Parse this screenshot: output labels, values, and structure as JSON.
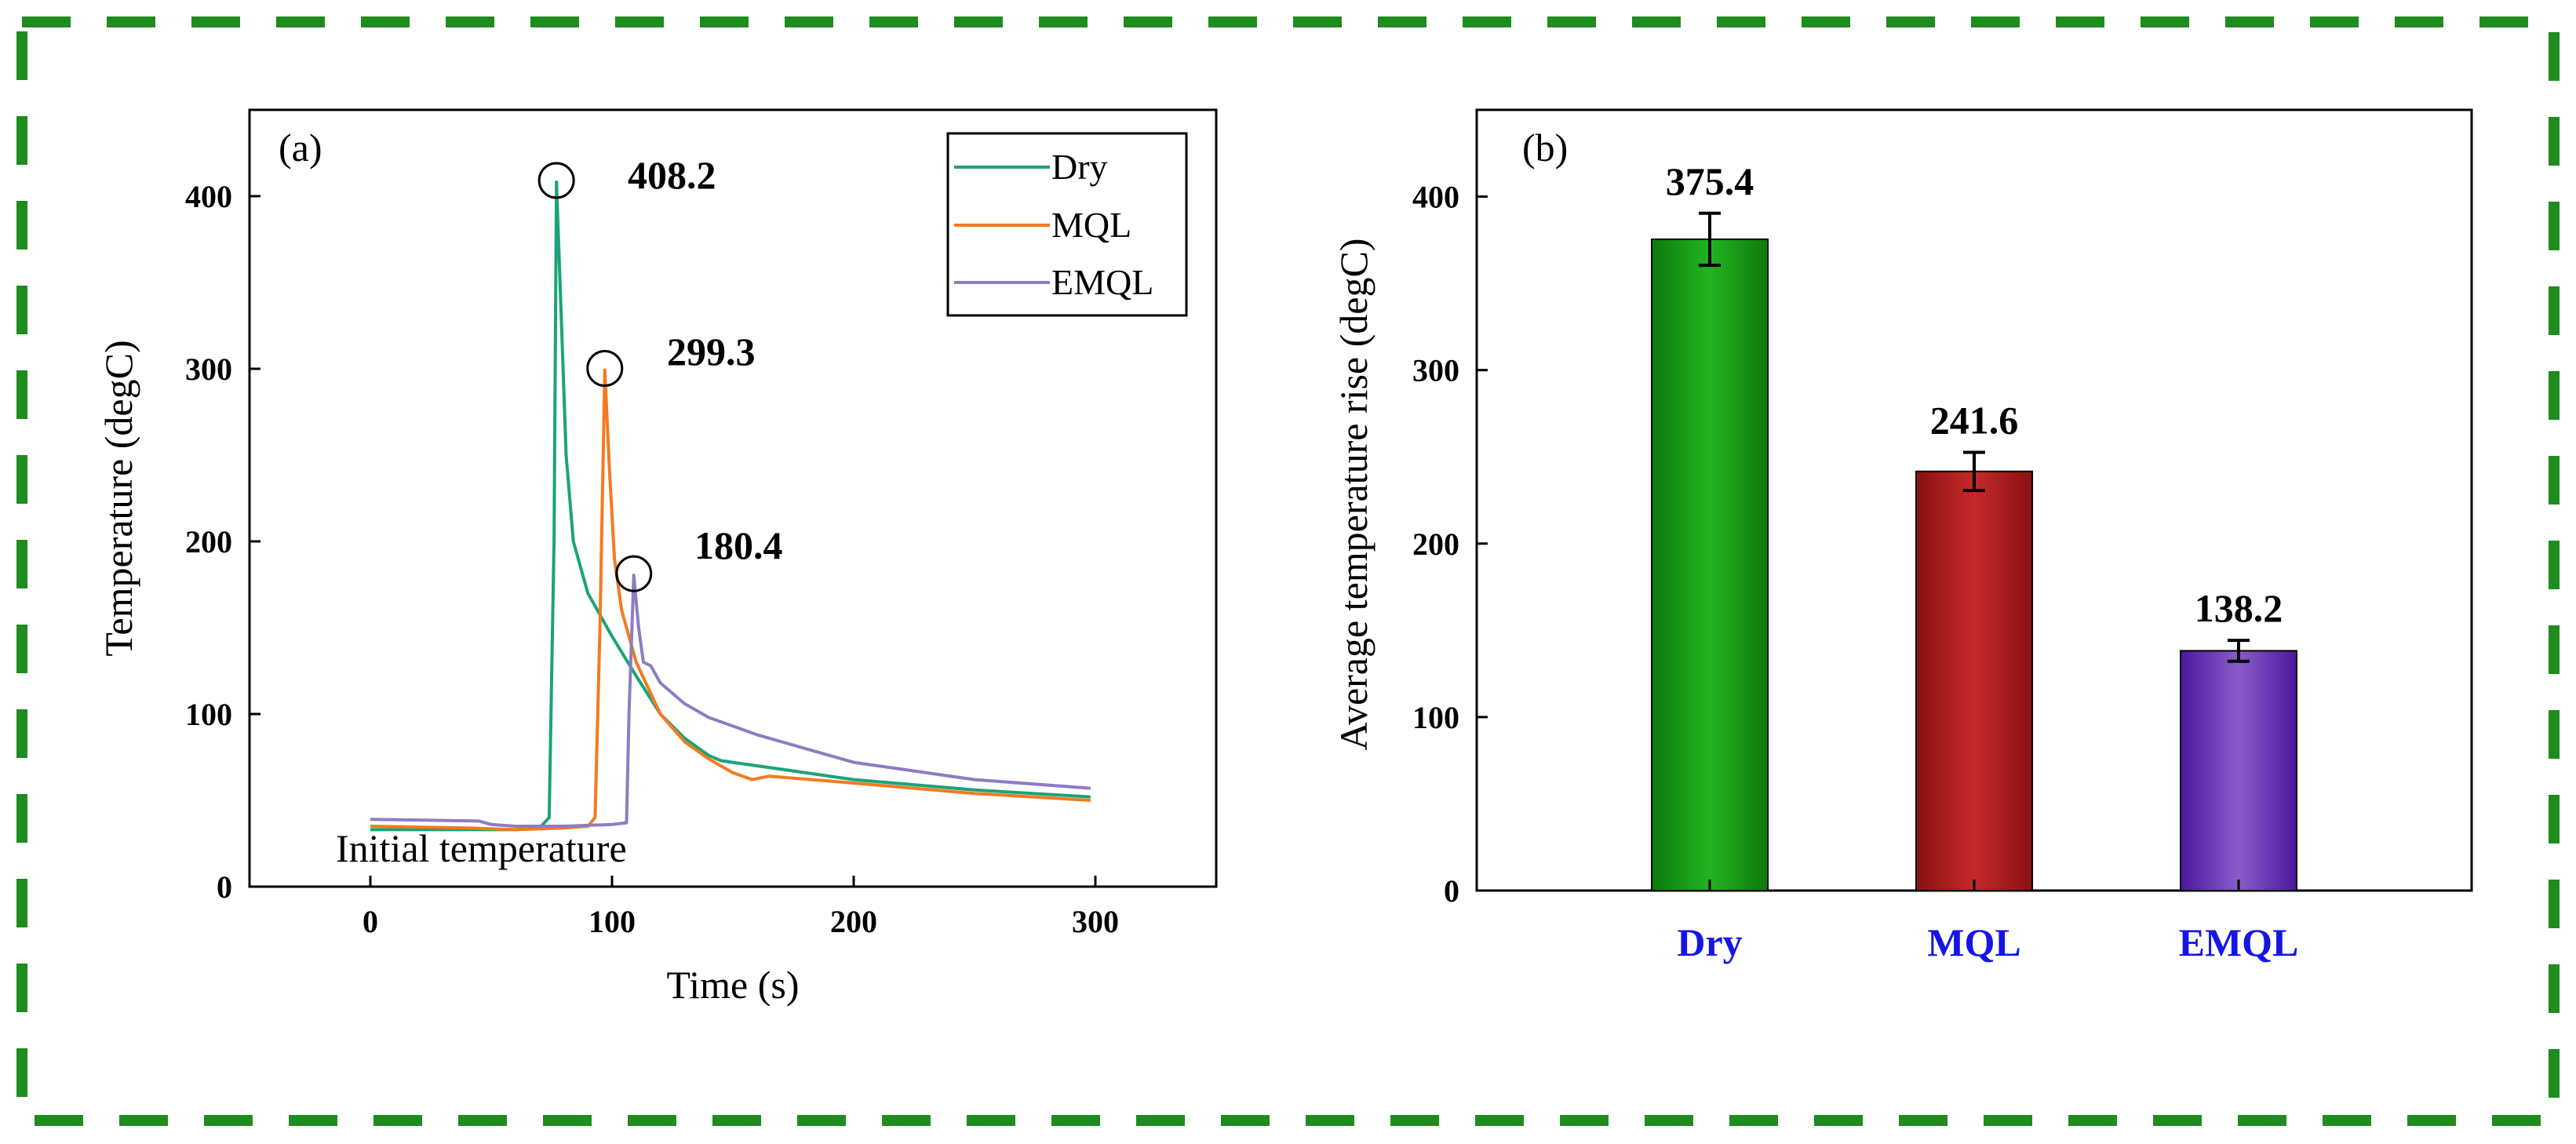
{
  "frame_color": "#1e8c1e",
  "chart_data": [
    {
      "type": "line",
      "panel_label": "(a)",
      "xlabel": "Time (s)",
      "ylabel": "Temperature  (degC)",
      "xlim": [
        -50,
        350
      ],
      "ylim": [
        0,
        450
      ],
      "xticks": [
        0,
        100,
        200,
        300
      ],
      "yticks": [
        0,
        100,
        200,
        300,
        400
      ],
      "grid": false,
      "legend_position": "top-right",
      "annotation": "Initial temperature",
      "series": [
        {
          "name": "Dry",
          "color": "#1aa37a",
          "peak_label": "408.2",
          "peak": [
            77,
            408.2
          ],
          "points": [
            [
              0,
              33
            ],
            [
              40,
              33
            ],
            [
              60,
              33
            ],
            [
              70,
              34
            ],
            [
              74,
              40
            ],
            [
              76,
              200
            ],
            [
              77,
              408.2
            ],
            [
              79,
              330
            ],
            [
              81,
              250
            ],
            [
              84,
              200
            ],
            [
              90,
              170
            ],
            [
              100,
              145
            ],
            [
              110,
              122
            ],
            [
              120,
              100
            ],
            [
              130,
              86
            ],
            [
              140,
              76
            ],
            [
              145,
              73
            ],
            [
              150,
              72
            ],
            [
              170,
              68
            ],
            [
              200,
              62
            ],
            [
              250,
              56
            ],
            [
              298,
              52
            ]
          ]
        },
        {
          "name": "MQL",
          "color": "#f47a20",
          "peak_label": "299.3",
          "peak": [
            97,
            299.3
          ],
          "points": [
            [
              0,
              35
            ],
            [
              40,
              34
            ],
            [
              60,
              33
            ],
            [
              80,
              34
            ],
            [
              90,
              35
            ],
            [
              93,
              40
            ],
            [
              95,
              150
            ],
            [
              97,
              299.3
            ],
            [
              99,
              240
            ],
            [
              101,
              190
            ],
            [
              104,
              160
            ],
            [
              110,
              130
            ],
            [
              120,
              100
            ],
            [
              130,
              84
            ],
            [
              140,
              74
            ],
            [
              150,
              66
            ],
            [
              158,
              62
            ],
            [
              165,
              64
            ],
            [
              200,
              60
            ],
            [
              250,
              54
            ],
            [
              298,
              50
            ]
          ]
        },
        {
          "name": "EMQL",
          "color": "#8e7cc3",
          "peak_label": "180.4",
          "peak": [
            109,
            180.4
          ],
          "points": [
            [
              0,
              39
            ],
            [
              45,
              38
            ],
            [
              50,
              36
            ],
            [
              60,
              35
            ],
            [
              80,
              35
            ],
            [
              100,
              36
            ],
            [
              106,
              37
            ],
            [
              107,
              100
            ],
            [
              109,
              180.4
            ],
            [
              111,
              150
            ],
            [
              113,
              130
            ],
            [
              116,
              128
            ],
            [
              120,
              118
            ],
            [
              130,
              106
            ],
            [
              140,
              98
            ],
            [
              160,
              88
            ],
            [
              200,
              72
            ],
            [
              250,
              62
            ],
            [
              298,
              57
            ]
          ]
        }
      ]
    },
    {
      "type": "bar",
      "panel_label": "(b)",
      "xlabel": "",
      "ylabel": "Average temperature rise (degC)",
      "ylim": [
        0,
        450
      ],
      "yticks": [
        0,
        100,
        200,
        300,
        400
      ],
      "categories": [
        "Dry",
        "MQL",
        "EMQL"
      ],
      "values": [
        375.4,
        241.6,
        138.2
      ],
      "value_labels": [
        "375.4",
        "241.6",
        "138.2"
      ],
      "error": [
        15,
        11,
        6
      ],
      "bar_colors": [
        "#12a012",
        "#b01c1c",
        "#6a2cb0"
      ],
      "category_label_color": "#1515e6"
    }
  ]
}
